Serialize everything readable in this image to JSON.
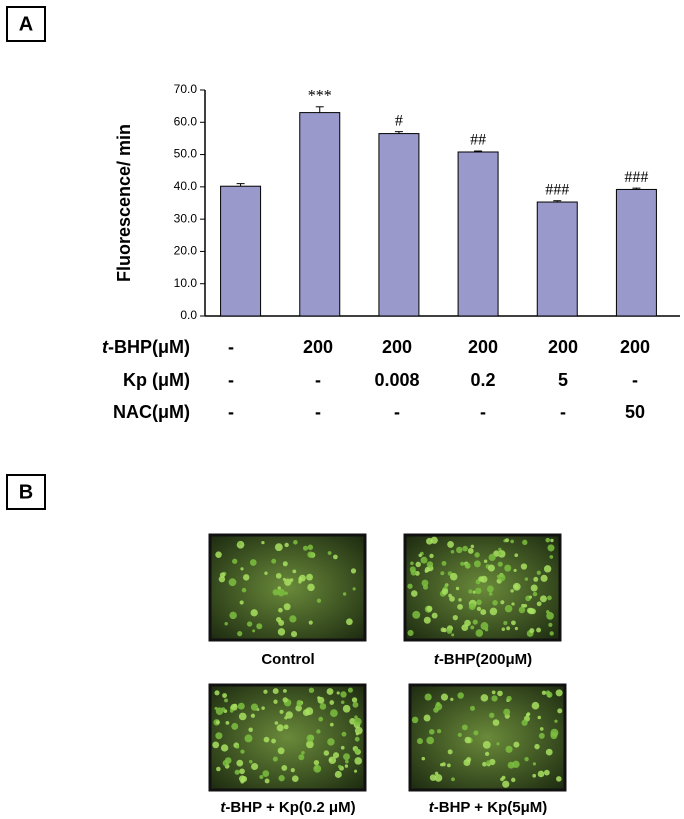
{
  "panels": [
    "A",
    "B"
  ],
  "chart_data": {
    "type": "bar",
    "y_label": "Fluorescence/ min",
    "values": [
      40.2,
      63.0,
      56.5,
      50.8,
      35.3,
      39.2
    ],
    "errors": [
      0.8,
      1.8,
      0.6,
      0.3,
      0.4,
      0.4
    ],
    "annotations": [
      null,
      "***",
      "#",
      "##",
      "###",
      "###"
    ],
    "color": "#9999cc",
    "ylim": [
      0,
      70
    ],
    "yticks": [
      {
        "value": 0,
        "label": "0.0"
      },
      {
        "value": 10,
        "label": "10.0"
      },
      {
        "value": 20,
        "label": "20.0"
      },
      {
        "value": 30,
        "label": "30.0"
      },
      {
        "value": 40,
        "label": "40.0"
      },
      {
        "value": 50,
        "label": "50.0"
      },
      {
        "value": 60,
        "label": "60.0"
      },
      {
        "value": 70,
        "label": "70.0"
      }
    ]
  },
  "treatments": [
    {
      "label": "t-BHP(μM)",
      "cells": [
        "-",
        "200",
        "200",
        "200",
        "200",
        "200"
      ]
    },
    {
      "label": "Kp (μM)",
      "cells": [
        "-",
        "-",
        "0.008",
        "0.2",
        "5",
        "-"
      ]
    },
    {
      "label": "NAC(μM)",
      "cells": [
        "-",
        "-",
        "-",
        "-",
        "-",
        "50"
      ]
    }
  ],
  "images": [
    {
      "caption": "Control"
    },
    {
      "caption": "t-BHP(200μM)"
    },
    {
      "caption": "t-BHP + Kp(0.2 μM)"
    },
    {
      "caption": "t-BHP + Kp(5μM)"
    }
  ]
}
